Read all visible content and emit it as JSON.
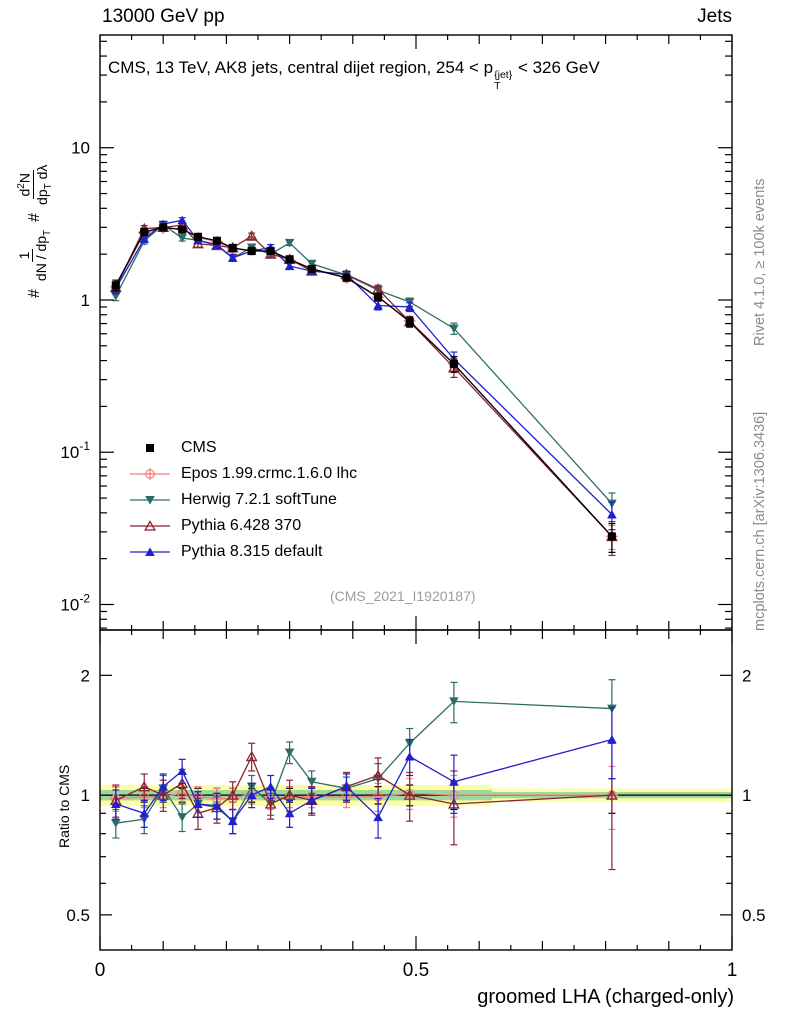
{
  "header": {
    "left": "13000 GeV pp",
    "right": "Jets"
  },
  "title": {
    "pre": "CMS, 13 TeV, AK8 jets, central dijet region, 254 < p",
    "sup": "{jet}",
    "sub": "T",
    "post": " < 326 GeV"
  },
  "ylabel": {
    "hash1": "#",
    "frac1_num": "1",
    "frac1_den_pre": "dN / dp",
    "frac1_den_sub": "T",
    "hash2": "#",
    "frac2_num_pre": "d",
    "frac2_num_sup": "2",
    "frac2_num_post": "N",
    "frac2_den_pre": "dp",
    "frac2_den_sub": "T",
    "frac2_den_post": " dλ"
  },
  "right_texts": {
    "rivet": "Rivet 4.1.0, ≥ 100k events",
    "mcplots": "mcplots.cern.ch [arXiv:1306.3436]"
  },
  "watermark": "(CMS_2021_I1920187)",
  "chart_data": {
    "type": "line",
    "xlabel": "groomed LHA (charged-only)",
    "xlim": [
      0,
      1
    ],
    "ylim": [
      0.0068,
      55
    ],
    "x": [
      0.025,
      0.07,
      0.1,
      0.13,
      0.155,
      0.185,
      0.21,
      0.24,
      0.27,
      0.3,
      0.335,
      0.39,
      0.44,
      0.49,
      0.56,
      0.81
    ],
    "xticks": [
      {
        "v": 0,
        "label": "0"
      },
      {
        "v": 0.5,
        "label": "0.5"
      },
      {
        "v": 1,
        "label": "1"
      }
    ],
    "yticks": [
      {
        "v": 10,
        "label": "10"
      },
      {
        "v": 1,
        "label": "1"
      },
      {
        "v": 0.1,
        "base": "10",
        "exp": "-1"
      },
      {
        "v": 0.01,
        "base": "10",
        "exp": "-2"
      }
    ],
    "series": [
      {
        "key": "cms",
        "name": "CMS",
        "color": "#000000",
        "marker": "square",
        "legend_line": false,
        "values": [
          1.25,
          2.8,
          3.0,
          2.9,
          2.6,
          2.45,
          2.2,
          2.1,
          2.1,
          1.85,
          1.6,
          1.4,
          1.05,
          0.72,
          0.38,
          0.028
        ],
        "err": [
          0.1,
          0.15,
          0.15,
          0.15,
          0.13,
          0.12,
          0.11,
          0.11,
          0.1,
          0.09,
          0.08,
          0.07,
          0.06,
          0.05,
          0.045,
          0.006
        ]
      },
      {
        "key": "epos",
        "name": "Epos 1.99.crmc.1.6.0 lhc",
        "color": "#f08080",
        "marker": "circle-plus",
        "legend_line": true,
        "values": [
          1.22,
          2.76,
          2.97,
          2.93,
          2.57,
          2.41,
          2.16,
          2.12,
          2.06,
          1.83,
          1.59,
          1.39,
          1.04,
          0.73,
          0.38,
          0.028
        ],
        "err": [
          0.08,
          0.12,
          0.12,
          0.12,
          0.11,
          0.1,
          0.09,
          0.09,
          0.09,
          0.08,
          0.07,
          0.06,
          0.05,
          0.04,
          0.035,
          0.005
        ]
      },
      {
        "key": "herwig",
        "name": "Herwig 7.2.1 softTune",
        "color": "#2d6d66",
        "marker": "triangle-down",
        "legend_line": true,
        "values": [
          1.06,
          2.44,
          3.12,
          2.55,
          2.47,
          2.28,
          1.89,
          2.21,
          2.0,
          2.37,
          1.73,
          1.46,
          1.16,
          0.97,
          0.65,
          0.046
        ],
        "err": [
          0.07,
          0.11,
          0.12,
          0.11,
          0.1,
          0.1,
          0.09,
          0.09,
          0.08,
          0.09,
          0.08,
          0.07,
          0.07,
          0.06,
          0.055,
          0.008
        ]
      },
      {
        "key": "pythia6",
        "name": "Pythia 6.428 370",
        "color": "#8b2331",
        "marker": "triangle-up-open",
        "legend_line": true,
        "values": [
          1.21,
          2.94,
          3.0,
          3.1,
          2.34,
          2.28,
          2.2,
          2.63,
          2.0,
          1.85,
          1.55,
          1.47,
          1.18,
          0.72,
          0.36,
          0.028
        ],
        "err": [
          0.1,
          0.14,
          0.14,
          0.14,
          0.12,
          0.11,
          0.11,
          0.12,
          0.1,
          0.1,
          0.09,
          0.08,
          0.07,
          0.06,
          0.05,
          0.007
        ]
      },
      {
        "key": "pythia8",
        "name": "Pythia 8.315 default",
        "color": "#2020cc",
        "marker": "triangle-up",
        "legend_line": true,
        "values": [
          1.19,
          2.52,
          3.15,
          3.34,
          2.47,
          2.3,
          1.89,
          2.1,
          2.21,
          1.67,
          1.55,
          1.47,
          0.92,
          0.9,
          0.41,
          0.039
        ],
        "err": [
          0.09,
          0.12,
          0.13,
          0.13,
          0.11,
          0.11,
          0.09,
          0.1,
          0.1,
          0.08,
          0.08,
          0.07,
          0.06,
          0.06,
          0.045,
          0.008
        ]
      }
    ],
    "ratio": {
      "label": "Ratio to CMS",
      "ylim": [
        0.408,
        2.6
      ],
      "yticks": [
        {
          "v": 2,
          "label": "2"
        },
        {
          "v": 1,
          "label": "1"
        },
        {
          "v": 0.5,
          "label": "0.5"
        }
      ],
      "bands": [
        {
          "x0": 0,
          "x1": 0.62,
          "lo": 0.94,
          "hi": 1.06,
          "color": "#feffa0"
        },
        {
          "x0": 0.62,
          "x1": 1.0,
          "lo": 0.962,
          "hi": 1.038,
          "color": "#feffa0"
        },
        {
          "x0": 0,
          "x1": 0.62,
          "lo": 0.97,
          "hi": 1.03,
          "color": "#9fd89f"
        },
        {
          "x0": 0.62,
          "x1": 1.0,
          "lo": 0.982,
          "hi": 1.018,
          "color": "#9fd89f"
        }
      ],
      "cms_err": [
        0.05,
        0.04,
        0.04,
        0.04,
        0.04,
        0.04,
        0.04,
        0.04,
        0.04,
        0.04,
        0.04,
        0.04,
        0.05,
        0.06,
        0.08,
        0.1
      ],
      "series": [
        {
          "name": "Epos 1.99.crmc.1.6.0 lhc",
          "values": [
            0.98,
            0.99,
            0.99,
            1.01,
            0.99,
            0.98,
            0.98,
            1.01,
            0.98,
            0.99,
            0.99,
            0.99,
            0.99,
            1.01,
            1.0,
            1.0
          ],
          "err": [
            0.07,
            0.06,
            0.06,
            0.06,
            0.06,
            0.06,
            0.06,
            0.06,
            0.06,
            0.06,
            0.06,
            0.06,
            0.08,
            0.09,
            0.12,
            0.18
          ]
        },
        {
          "name": "Herwig 7.2.1 softTune",
          "values": [
            0.85,
            0.87,
            1.04,
            0.88,
            0.95,
            0.93,
            0.86,
            1.05,
            0.95,
            1.28,
            1.08,
            1.04,
            1.1,
            1.35,
            1.72,
            1.65
          ],
          "err": [
            0.07,
            0.07,
            0.08,
            0.07,
            0.07,
            0.06,
            0.06,
            0.07,
            0.06,
            0.08,
            0.07,
            0.07,
            0.1,
            0.12,
            0.2,
            0.3
          ]
        },
        {
          "name": "Pythia 6.428 370",
          "values": [
            0.97,
            1.05,
            1.0,
            1.07,
            0.9,
            0.93,
            1.0,
            1.25,
            0.95,
            1.0,
            0.97,
            1.05,
            1.12,
            1.0,
            0.95,
            1.0
          ],
          "err": [
            0.09,
            0.08,
            0.09,
            0.09,
            0.08,
            0.08,
            0.08,
            0.1,
            0.08,
            0.09,
            0.08,
            0.09,
            0.12,
            0.14,
            0.2,
            0.35
          ]
        },
        {
          "name": "Pythia 8.315 default",
          "values": [
            0.95,
            0.9,
            1.05,
            1.15,
            0.95,
            0.94,
            0.86,
            1.0,
            1.05,
            0.9,
            0.97,
            1.05,
            0.88,
            1.25,
            1.08,
            1.38
          ],
          "err": [
            0.08,
            0.07,
            0.08,
            0.08,
            0.07,
            0.07,
            0.06,
            0.07,
            0.07,
            0.07,
            0.07,
            0.08,
            0.1,
            0.13,
            0.18,
            0.28
          ]
        }
      ]
    }
  }
}
